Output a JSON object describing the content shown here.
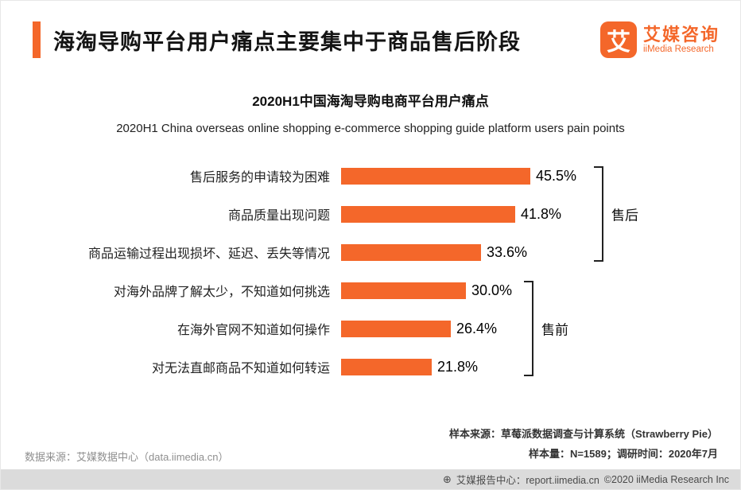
{
  "header": {
    "title": "海淘导购平台用户痛点主要集中于商品售后阶段"
  },
  "logo": {
    "mark": "艾",
    "brand_cn": "艾媒咨询",
    "brand_en": "iiMedia Research"
  },
  "chart": {
    "title": "2020H1中国海淘导购电商平台用户痛点",
    "subtitle": "2020H1 China overseas online shopping e-commerce shopping guide platform users pain points"
  },
  "chart_data": {
    "type": "bar",
    "orientation": "horizontal",
    "title": "2020H1中国海淘导购电商平台用户痛点",
    "categories": [
      "售后服务的申请较为困难",
      "商品质量出现问题",
      "商品运输过程出现损坏、延迟、丢失等情况",
      "对海外品牌了解太少，不知道如何挑选",
      "在海外官网不知道如何操作",
      "对无法直邮商品不知道如何转运"
    ],
    "values": [
      45.5,
      41.8,
      33.6,
      30.0,
      26.4,
      21.8
    ],
    "value_labels": [
      "45.5%",
      "41.8%",
      "33.6%",
      "30.0%",
      "26.4%",
      "21.8%"
    ],
    "xlim": [
      0,
      50
    ],
    "grid": false,
    "legend_position": "none",
    "bar_color": "#F4672A",
    "groups": [
      {
        "label": "售后",
        "rows": [
          0,
          1,
          2
        ]
      },
      {
        "label": "售前",
        "rows": [
          3,
          4,
          5
        ]
      }
    ]
  },
  "footer": {
    "sample_source": "样本来源：草莓派数据调查与计算系统（Strawberry Pie）",
    "sample_info": "样本量：N=1589；调研时间：2020年7月",
    "data_source": "数据来源：艾媒数据中心（data.iimedia.cn）",
    "report_icon": "⊕",
    "report_center": "艾媒报告中心：report.iimedia.cn",
    "copyright": "©2020  iiMedia Research  Inc"
  }
}
